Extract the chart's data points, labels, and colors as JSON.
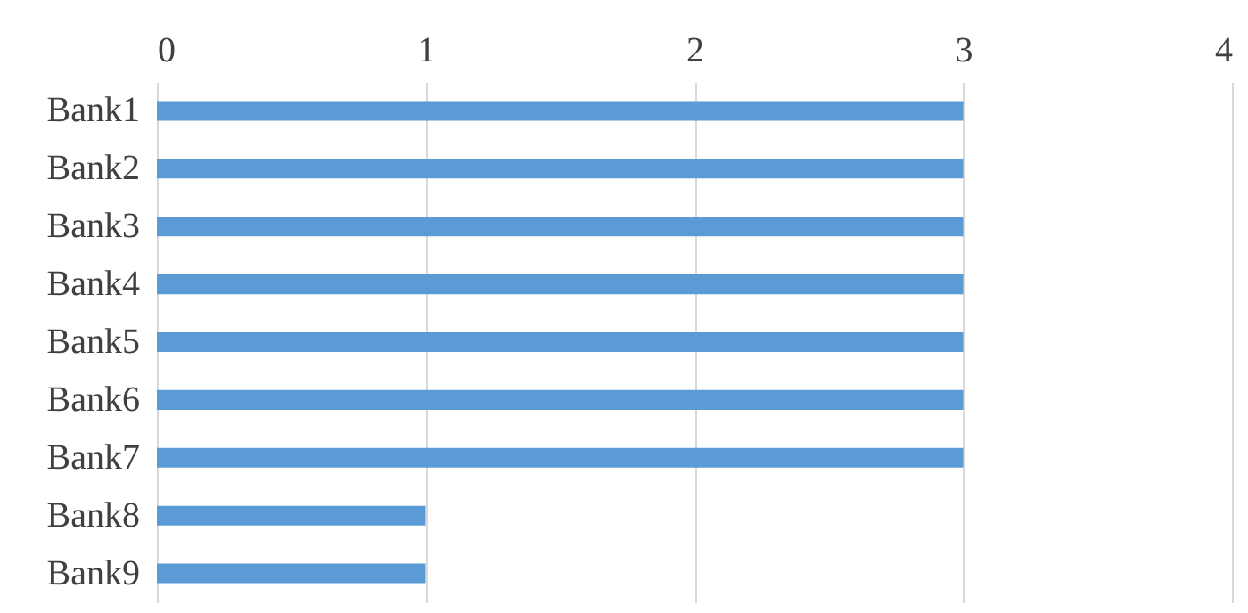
{
  "chart_data": {
    "type": "bar",
    "orientation": "horizontal",
    "categories": [
      "Bank1",
      "Bank2",
      "Bank3",
      "Bank4",
      "Bank5",
      "Bank6",
      "Bank7",
      "Bank8",
      "Bank9"
    ],
    "values": [
      3,
      3,
      3,
      3,
      3,
      3,
      3,
      1,
      1
    ],
    "color": "#5b9bd5",
    "xlim": [
      0,
      4
    ],
    "xticks": [
      0,
      1,
      2,
      3,
      4
    ],
    "grid": "x"
  }
}
